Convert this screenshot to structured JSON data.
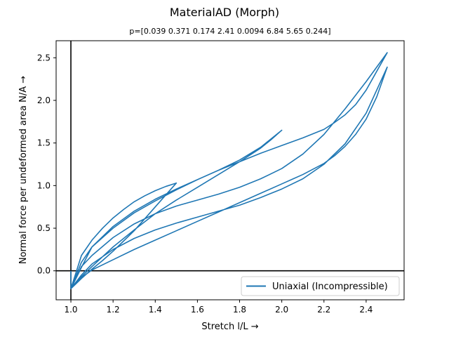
{
  "chart_data": {
    "type": "line",
    "title": "MaterialAD (Morph)",
    "subtitle": "p=[0.039 0.371 0.174 2.41 0.0094 6.84 5.65 0.244]",
    "xlabel": "Stretch l/L  →",
    "ylabel": "Normal force per undeformed area N/A  →",
    "xlim": [
      0.93,
      2.58
    ],
    "ylim": [
      -0.34,
      2.7
    ],
    "xticks": [
      1.0,
      1.2,
      1.4,
      1.6,
      1.8,
      2.0,
      2.2,
      2.4
    ],
    "xtick_labels": [
      "1.0",
      "1.2",
      "1.4",
      "1.6",
      "1.8",
      "2.0",
      "2.2",
      "2.4"
    ],
    "yticks": [
      0.0,
      0.5,
      1.0,
      1.5,
      2.0,
      2.5
    ],
    "ytick_labels": [
      "0.0",
      "0.5",
      "1.0",
      "1.5",
      "2.0",
      "2.5"
    ],
    "reference_lines": {
      "x": 1.0,
      "y": 0.0
    },
    "grid": false,
    "legend": {
      "placement": "lower-right",
      "entries": [
        "Uniaxial (Incompressible)"
      ]
    },
    "series": [
      {
        "name": "Uniaxial (Incompressible)",
        "color": "#1f77b4",
        "x": [
          1.0,
          1.05,
          1.1,
          1.15,
          1.2,
          1.25,
          1.3,
          1.35,
          1.4,
          1.45,
          1.5,
          1.45,
          1.4,
          1.35,
          1.3,
          1.25,
          1.2,
          1.15,
          1.1,
          1.05,
          1.0,
          1.05,
          1.1,
          1.2,
          1.3,
          1.4,
          1.5,
          1.6,
          1.7,
          1.8,
          1.9,
          2.0,
          1.95,
          1.9,
          1.85,
          1.8,
          1.7,
          1.6,
          1.5,
          1.4,
          1.3,
          1.2,
          1.1,
          1.05,
          1.0,
          1.05,
          1.1,
          1.2,
          1.3,
          1.4,
          1.5,
          1.6,
          1.7,
          1.8,
          1.9,
          2.0,
          2.1,
          2.2,
          2.3,
          2.4,
          2.5,
          2.45,
          2.4,
          2.35,
          2.3,
          2.25,
          2.2,
          2.1,
          2.0,
          1.9,
          1.8,
          1.7,
          1.6,
          1.5,
          1.4,
          1.3,
          1.2,
          1.1,
          1.05,
          1.0,
          1.05,
          1.1,
          1.2,
          1.3,
          1.4,
          1.5,
          1.6,
          1.7,
          1.8,
          1.9,
          2.0,
          2.1,
          2.2,
          2.3,
          2.4,
          2.5,
          2.45,
          2.4,
          2.35,
          2.3,
          2.25,
          2.2,
          2.1,
          2.0,
          1.9,
          1.8,
          1.7,
          1.6,
          1.5,
          1.4,
          1.3,
          1.2,
          1.1,
          1.05,
          1.0,
          1.0
        ],
        "y": [
          -0.21,
          0.18,
          0.36,
          0.5,
          0.62,
          0.72,
          0.81,
          0.88,
          0.94,
          0.99,
          1.03,
          0.89,
          0.75,
          0.61,
          0.47,
          0.35,
          0.23,
          0.12,
          0.02,
          -0.09,
          -0.21,
          0.1,
          0.28,
          0.52,
          0.7,
          0.84,
          0.96,
          1.07,
          1.18,
          1.3,
          1.45,
          1.65,
          1.54,
          1.44,
          1.36,
          1.28,
          1.13,
          0.98,
          0.83,
          0.67,
          0.48,
          0.28,
          0.05,
          -0.07,
          -0.21,
          0.05,
          0.18,
          0.39,
          0.55,
          0.67,
          0.76,
          0.83,
          0.9,
          0.98,
          1.08,
          1.2,
          1.37,
          1.6,
          1.9,
          2.22,
          2.56,
          2.34,
          2.12,
          1.95,
          1.83,
          1.74,
          1.66,
          1.56,
          1.47,
          1.38,
          1.28,
          1.18,
          1.07,
          0.95,
          0.82,
          0.68,
          0.5,
          0.28,
          0.04,
          -0.21,
          -0.05,
          0.08,
          0.25,
          0.38,
          0.48,
          0.56,
          0.63,
          0.7,
          0.77,
          0.86,
          0.96,
          1.08,
          1.25,
          1.49,
          1.85,
          2.39,
          2.04,
          1.78,
          1.6,
          1.46,
          1.35,
          1.26,
          1.13,
          1.02,
          0.91,
          0.8,
          0.69,
          0.58,
          0.47,
          0.36,
          0.25,
          0.13,
          0.01,
          -0.08,
          -0.21,
          0.0
        ]
      }
    ]
  }
}
